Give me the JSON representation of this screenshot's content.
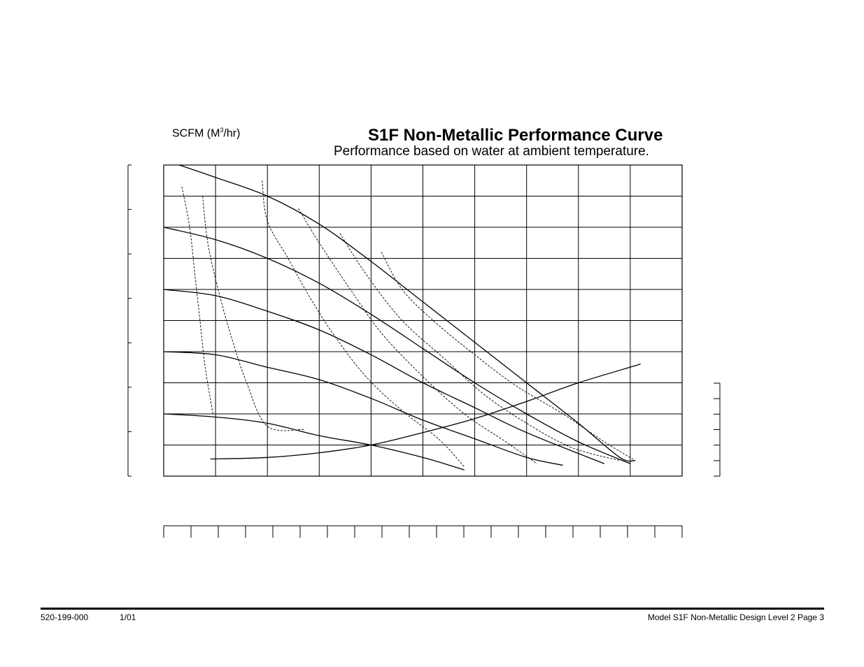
{
  "chart_data": {
    "type": "line",
    "title": "S1F Non-Metallic Performance Curve",
    "subtitle": "Performance based on water at ambient temperature.",
    "air_unit_label": "SCFM (M",
    "air_unit_sup": "3",
    "air_unit_suffix": "/hr)",
    "xlim": [
      0,
      10
    ],
    "ylim": [
      0,
      10
    ],
    "grid": true,
    "axis_tick_labels_visible": false,
    "head_curves": [
      {
        "values": [
          [
            0.3,
            10.0
          ],
          [
            1.0,
            9.6
          ],
          [
            2.0,
            9.0
          ],
          [
            3.0,
            8.1
          ],
          [
            4.0,
            6.9
          ],
          [
            5.0,
            5.6
          ],
          [
            6.0,
            4.3
          ],
          [
            7.0,
            3.0
          ],
          [
            8.0,
            1.7
          ],
          [
            8.8,
            0.6
          ],
          [
            9.1,
            0.5
          ]
        ]
      },
      {
        "values": [
          [
            0.0,
            8.0
          ],
          [
            1.0,
            7.6
          ],
          [
            2.0,
            7.0
          ],
          [
            3.0,
            6.2
          ],
          [
            4.0,
            5.2
          ],
          [
            5.0,
            4.1
          ],
          [
            6.0,
            3.0
          ],
          [
            7.0,
            2.0
          ],
          [
            8.0,
            1.1
          ],
          [
            9.0,
            0.4
          ]
        ]
      },
      {
        "values": [
          [
            0.0,
            6.0
          ],
          [
            1.0,
            5.8
          ],
          [
            2.0,
            5.3
          ],
          [
            3.0,
            4.7
          ],
          [
            4.0,
            3.9
          ],
          [
            5.0,
            3.0
          ],
          [
            6.0,
            2.2
          ],
          [
            7.0,
            1.4
          ],
          [
            8.5,
            0.4
          ]
        ]
      },
      {
        "values": [
          [
            0.0,
            4.0
          ],
          [
            1.0,
            3.9
          ],
          [
            2.0,
            3.5
          ],
          [
            3.0,
            3.1
          ],
          [
            4.0,
            2.5
          ],
          [
            5.0,
            1.8
          ],
          [
            6.0,
            1.2
          ],
          [
            7.0,
            0.6
          ],
          [
            7.7,
            0.35
          ]
        ]
      },
      {
        "values": [
          [
            0.0,
            2.0
          ],
          [
            1.0,
            1.9
          ],
          [
            2.0,
            1.7
          ],
          [
            3.0,
            1.3
          ],
          [
            4.0,
            1.0
          ],
          [
            5.0,
            0.6
          ],
          [
            5.8,
            0.2
          ]
        ]
      }
    ],
    "air_curves": [
      {
        "values": [
          [
            0.35,
            9.3
          ],
          [
            0.5,
            8.0
          ],
          [
            0.6,
            6.5
          ],
          [
            0.7,
            5.0
          ],
          [
            0.8,
            3.5
          ],
          [
            0.95,
            2.0
          ]
        ]
      },
      {
        "values": [
          [
            0.75,
            9.0
          ],
          [
            0.85,
            7.5
          ],
          [
            1.05,
            6.0
          ],
          [
            1.3,
            4.5
          ],
          [
            1.6,
            3.0
          ],
          [
            2.0,
            1.6
          ],
          [
            2.7,
            1.5
          ]
        ]
      },
      {
        "values": [
          [
            1.9,
            9.5
          ],
          [
            2.0,
            8.2
          ],
          [
            2.4,
            7.0
          ],
          [
            2.8,
            5.8
          ],
          [
            3.3,
            4.5
          ],
          [
            3.9,
            3.2
          ],
          [
            4.6,
            2.1
          ],
          [
            5.3,
            1.2
          ],
          [
            5.8,
            0.3
          ]
        ]
      },
      {
        "values": [
          [
            2.6,
            8.6
          ],
          [
            3.0,
            7.5
          ],
          [
            3.6,
            6.0
          ],
          [
            4.2,
            4.6
          ],
          [
            5.0,
            3.2
          ],
          [
            5.8,
            2.0
          ],
          [
            6.6,
            1.1
          ],
          [
            7.2,
            0.4
          ]
        ]
      },
      {
        "values": [
          [
            3.4,
            7.8
          ],
          [
            3.9,
            6.5
          ],
          [
            4.6,
            5.0
          ],
          [
            5.4,
            3.8
          ],
          [
            6.2,
            2.6
          ],
          [
            7.1,
            1.6
          ],
          [
            7.9,
            0.9
          ],
          [
            8.8,
            0.5
          ]
        ]
      },
      {
        "values": [
          [
            4.2,
            7.2
          ],
          [
            4.6,
            6.0
          ],
          [
            5.2,
            5.0
          ],
          [
            6.0,
            3.9
          ],
          [
            6.8,
            2.9
          ],
          [
            7.7,
            2.0
          ],
          [
            8.5,
            1.1
          ],
          [
            9.1,
            0.5
          ]
        ]
      }
    ],
    "air_consumption_line": {
      "values": [
        [
          0.9,
          0.55
        ],
        [
          2.0,
          0.6
        ],
        [
          3.0,
          0.75
        ],
        [
          4.0,
          1.0
        ],
        [
          5.0,
          1.4
        ],
        [
          6.0,
          1.85
        ],
        [
          7.0,
          2.4
        ],
        [
          8.0,
          3.0
        ],
        [
          9.2,
          3.6
        ]
      ]
    }
  },
  "footer": {
    "doc_number": "520-199-000",
    "date": "1/01",
    "model_text": "Model S1F Non-Metallic Design Level 2 Page 3"
  }
}
